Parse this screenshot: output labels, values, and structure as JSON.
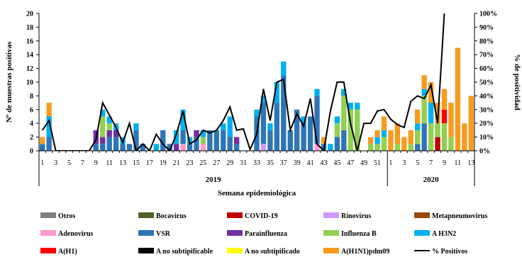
{
  "chart_data": {
    "type": "bar",
    "stacked": true,
    "xlabel": "Semana epidemiológica",
    "ylabel": "Nº de muestras positivas",
    "y2label": "% de positividad",
    "ylim": [
      0,
      20
    ],
    "y2lim": [
      0,
      100
    ],
    "yticks": [
      "0",
      "2",
      "4",
      "6",
      "8",
      "10",
      "12",
      "14",
      "16",
      "18",
      "20"
    ],
    "y2ticks": [
      "0%",
      "10%",
      "20%",
      "30%",
      "40%",
      "50%",
      "60%",
      "70%",
      "80%",
      "90%",
      "100%"
    ],
    "years": [
      "2019",
      "2020"
    ],
    "year_week_counts": [
      52,
      13
    ],
    "x_week_labels": [
      "1",
      "3",
      "5",
      "7",
      "9",
      "11",
      "13",
      "15",
      "17",
      "19",
      "21",
      "23",
      "25",
      "27",
      "29",
      "31",
      "33",
      "35",
      "37",
      "39",
      "41",
      "43",
      "45",
      "47",
      "49",
      "51",
      "1",
      "3",
      "5",
      "7",
      "9",
      "11",
      "13"
    ],
    "grid": false,
    "legend_position": "bottom",
    "series": [
      {
        "name": "Otros",
        "color": "#808080",
        "values": [
          0,
          0,
          0,
          0,
          0,
          0,
          0,
          0,
          0,
          0,
          0,
          0,
          0,
          0,
          0,
          0,
          0,
          0,
          0,
          0,
          0,
          0,
          0,
          0,
          0,
          0,
          0,
          0,
          0,
          0,
          0,
          0,
          0,
          0,
          0,
          0,
          0,
          0,
          0,
          0,
          0,
          0,
          0,
          0,
          0,
          0,
          0,
          0,
          0,
          0,
          0,
          0,
          0,
          0,
          0,
          0,
          0,
          0,
          0,
          0,
          0,
          0,
          0,
          0,
          0
        ]
      },
      {
        "name": "Bocavirus",
        "color": "#4f6228",
        "values": [
          0,
          0,
          0,
          0,
          0,
          0,
          0,
          0,
          0,
          0,
          0,
          0,
          0,
          0,
          0,
          0,
          0,
          0,
          0,
          0,
          0,
          0,
          0,
          0,
          0,
          0,
          0,
          0,
          0,
          0,
          0,
          0,
          0,
          0,
          0,
          0,
          0,
          0,
          0,
          0,
          0,
          0,
          0,
          0,
          0,
          0,
          0,
          0,
          0,
          0,
          0,
          0,
          0,
          0,
          0,
          0,
          0,
          0,
          0,
          0,
          0,
          0,
          0,
          0,
          0
        ]
      },
      {
        "name": "COVID-19",
        "color": "#c00000",
        "values": [
          0,
          0,
          0,
          0,
          0,
          0,
          0,
          0,
          0,
          0,
          0,
          0,
          0,
          0,
          0,
          0,
          0,
          0,
          0,
          0,
          0,
          0,
          0,
          0,
          0,
          0,
          0,
          0,
          0,
          0,
          0,
          0,
          0,
          0,
          0,
          0,
          0,
          0,
          0,
          0,
          0,
          0,
          0,
          0,
          0,
          0,
          0,
          0,
          0,
          0,
          0,
          0,
          0,
          0,
          0,
          0,
          0,
          0,
          0,
          2,
          0,
          0,
          0,
          0,
          0
        ]
      },
      {
        "name": "Rinovirus",
        "color": "#cc99ff",
        "values": [
          0,
          0,
          0,
          0,
          0,
          0,
          0,
          0,
          0,
          0,
          0,
          0,
          0,
          0,
          0,
          0,
          0,
          0,
          0,
          0,
          0,
          0,
          0,
          0,
          0,
          0,
          0,
          0,
          0,
          0,
          0,
          0,
          0,
          1,
          0,
          0,
          0,
          0,
          0,
          0,
          0,
          0,
          0,
          0,
          0,
          0,
          0,
          0,
          0,
          0,
          0,
          0,
          0,
          0,
          0,
          0,
          0,
          0,
          0,
          0,
          0,
          0,
          0,
          0,
          0
        ]
      },
      {
        "name": "Metapneumovirus",
        "color": "#984807",
        "values": [
          0,
          0,
          0,
          0,
          0,
          0,
          0,
          0,
          0,
          0,
          0,
          0,
          0,
          0,
          0,
          0,
          0,
          0,
          0,
          0,
          0,
          0,
          0,
          0,
          0,
          0,
          0,
          0,
          0,
          0,
          0,
          0,
          0,
          0,
          0,
          0,
          0,
          0,
          0,
          0,
          0,
          0,
          0,
          0,
          0,
          0,
          0,
          0,
          0,
          0,
          0,
          0,
          0,
          0,
          0,
          0,
          0,
          0,
          0,
          0,
          0,
          0,
          0,
          0,
          0
        ]
      },
      {
        "name": "Adenovirus",
        "color": "#ff99cc",
        "values": [
          0,
          0,
          0,
          0,
          0,
          0,
          0,
          0,
          0,
          0,
          0,
          0,
          0,
          0,
          0,
          0,
          0,
          0,
          0,
          0,
          0,
          1,
          0,
          0,
          1,
          0,
          0,
          0,
          0,
          0,
          0,
          0,
          0,
          0,
          0,
          0,
          0,
          0,
          0,
          0,
          0,
          1,
          0,
          0,
          0,
          0,
          0,
          0,
          0,
          0,
          0,
          0,
          0,
          0,
          0,
          0,
          0,
          0,
          0,
          0,
          0,
          0,
          0,
          0,
          0
        ]
      },
      {
        "name": "VSR",
        "color": "#2e75b6",
        "values": [
          1,
          2,
          0,
          0,
          0,
          0,
          0,
          0,
          1,
          1,
          2,
          2,
          1,
          1,
          3,
          1,
          0,
          0,
          3,
          1,
          0,
          2,
          1,
          2,
          0,
          3,
          3,
          3,
          2,
          1,
          0,
          0,
          5,
          6,
          3,
          7,
          11,
          3,
          6,
          4,
          5,
          7,
          1,
          0,
          2,
          3,
          0,
          0,
          0,
          0,
          0,
          0,
          0,
          0,
          0,
          0,
          1,
          4,
          0,
          0,
          0,
          0,
          0,
          0,
          0
        ]
      },
      {
        "name": "Parainfluenza",
        "color": "#7030a0",
        "values": [
          0,
          0,
          0,
          0,
          0,
          0,
          0,
          0,
          2,
          1,
          1,
          1,
          0,
          0,
          0,
          0,
          0,
          0,
          0,
          0,
          1,
          0,
          0,
          1,
          0,
          0,
          0,
          0,
          0,
          1,
          0,
          0,
          0,
          0,
          0,
          0,
          0,
          0,
          0,
          0,
          0,
          0,
          0,
          0,
          0,
          0,
          0,
          0,
          0,
          0,
          0,
          0,
          0,
          0,
          0,
          0,
          0,
          0,
          0,
          0,
          0,
          0,
          0,
          0,
          0
        ]
      },
      {
        "name": "Influenza  B",
        "color": "#92d050",
        "values": [
          0,
          0,
          0,
          0,
          0,
          0,
          0,
          0,
          0,
          3,
          1,
          0,
          0,
          0,
          0,
          0,
          0,
          0,
          0,
          0,
          0,
          0,
          0,
          0,
          1,
          0,
          0,
          0,
          0,
          0,
          0,
          0,
          0,
          0,
          0,
          0,
          0,
          0,
          0,
          0,
          0,
          0,
          0,
          0,
          2,
          5,
          6,
          6,
          0,
          1,
          1,
          2,
          0,
          1,
          0,
          1,
          2,
          4,
          4,
          2,
          4,
          2,
          0,
          0,
          0
        ]
      },
      {
        "name": "A H3N2",
        "color": "#00b0f0",
        "values": [
          0,
          3,
          0,
          0,
          0,
          0,
          0,
          0,
          0,
          1,
          1,
          1,
          1,
          0,
          1,
          0,
          0,
          1,
          0,
          0,
          2,
          3,
          1,
          0,
          1,
          0,
          0,
          1,
          3,
          0,
          0,
          0,
          1,
          1,
          1,
          3,
          2,
          0,
          0,
          1,
          0,
          1,
          0,
          1,
          1,
          1,
          1,
          1,
          0,
          0,
          1,
          1,
          0,
          0,
          0,
          0,
          1,
          1,
          3,
          0,
          0,
          0,
          0,
          0,
          0
        ]
      },
      {
        "name": "A(H1)",
        "color": "#ff0000",
        "values": [
          0,
          0,
          0,
          0,
          0,
          0,
          0,
          0,
          0,
          0,
          0,
          0,
          0,
          0,
          0,
          0,
          0,
          0,
          0,
          0,
          0,
          0,
          0,
          0,
          0,
          0,
          0,
          0,
          0,
          0,
          0,
          0,
          0,
          0,
          0,
          0,
          0,
          0,
          0,
          0,
          0,
          0,
          0,
          0,
          0,
          0,
          0,
          0,
          0,
          0,
          0,
          0,
          0,
          0,
          0,
          0,
          0,
          0,
          0,
          0,
          2,
          0,
          0,
          0,
          0
        ]
      },
      {
        "name": "A no subtipificable",
        "color": "#000000",
        "values": [
          0,
          0,
          0,
          0,
          0,
          0,
          0,
          0,
          0,
          0,
          0,
          0,
          0,
          0,
          0,
          0,
          0,
          0,
          0,
          0,
          0,
          0,
          0,
          0,
          0,
          0,
          0,
          0,
          0,
          0,
          0,
          0,
          0,
          0,
          0,
          0,
          0,
          0,
          0,
          0,
          0,
          0,
          0,
          0,
          0,
          0,
          0,
          0,
          0,
          0,
          0,
          0,
          0,
          0,
          0,
          0,
          0,
          0,
          0,
          0,
          0,
          0,
          0,
          0,
          0
        ]
      },
      {
        "name": "A no subtipificado",
        "color": "#ffff00",
        "values": [
          0,
          0,
          0,
          0,
          0,
          0,
          0,
          0,
          0,
          0,
          0,
          0,
          0,
          0,
          0,
          0,
          0,
          0,
          0,
          0,
          0,
          0,
          0,
          0,
          0,
          0,
          0,
          0,
          0,
          0,
          0,
          0,
          0,
          0,
          0,
          0,
          0,
          0,
          0,
          0,
          0,
          0,
          0,
          0,
          0,
          0,
          0,
          0,
          0,
          0,
          0,
          0,
          0,
          0,
          0,
          0,
          0,
          0,
          0,
          0,
          0,
          0,
          0,
          0,
          0
        ]
      },
      {
        "name": "A(H1N1)pdm09",
        "color": "#f79b1f",
        "values": [
          1,
          2,
          0,
          0,
          0,
          0,
          0,
          0,
          0,
          0,
          0,
          0,
          0,
          0,
          0,
          0,
          0,
          0,
          0,
          0,
          0,
          0,
          0,
          0,
          0,
          0,
          0,
          0,
          0,
          0,
          0,
          0,
          0,
          0,
          0,
          0,
          0,
          0,
          0,
          0,
          0,
          0,
          1,
          0,
          0,
          0,
          0,
          0,
          0,
          1,
          1,
          2,
          3,
          3,
          2,
          2,
          2,
          2,
          3,
          3,
          3,
          5,
          15,
          4,
          8
        ]
      }
    ],
    "line_series": {
      "name": "% Positivos",
      "color": "#000000",
      "values": [
        15,
        22,
        0,
        0,
        0,
        0,
        0,
        0,
        8,
        35,
        26,
        17,
        6,
        20,
        0,
        5,
        0,
        12,
        5,
        0,
        12,
        29,
        5,
        8,
        15,
        13,
        15,
        22,
        32,
        15,
        16,
        1,
        12,
        45,
        22,
        50,
        52,
        15,
        27,
        18,
        38,
        5,
        0,
        29,
        50,
        50,
        20,
        0,
        20,
        20,
        29,
        30,
        23,
        19,
        17,
        36,
        40,
        38,
        48,
        20,
        100,
        null,
        null,
        null,
        null
      ]
    }
  }
}
